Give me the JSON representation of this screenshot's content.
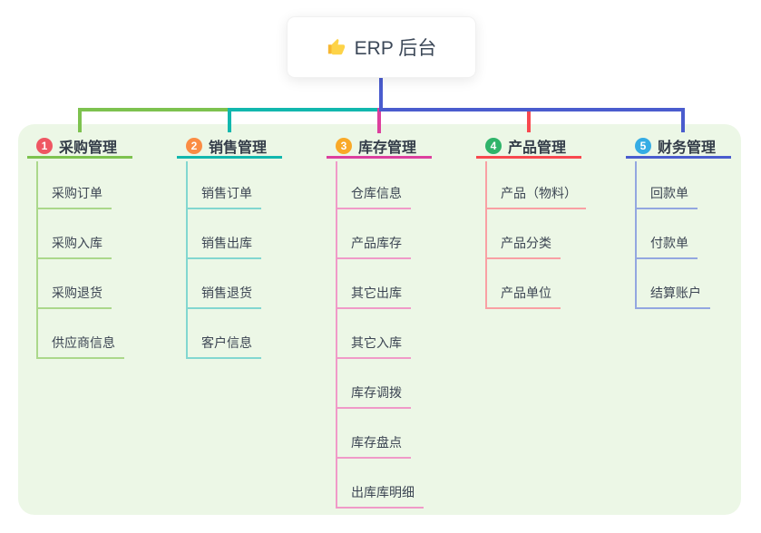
{
  "root": {
    "title": "ERP 后台",
    "icon": "thumbs-up-icon",
    "stem_color": "#4a5cce"
  },
  "panel": {
    "background": "#ecf7e6"
  },
  "branches": [
    {
      "number": "1",
      "title": "采购管理",
      "badge_color": "#ef5663",
      "line_color": "#7dc24f",
      "child_line_color": "#abd88b",
      "children": [
        "采购订单",
        "采购入库",
        "采购退货",
        "供应商信息"
      ]
    },
    {
      "number": "2",
      "title": "销售管理",
      "badge_color": "#fb8c44",
      "line_color": "#12b7ae",
      "child_line_color": "#82d7d0",
      "children": [
        "销售订单",
        "销售出库",
        "销售退货",
        "客户信息"
      ]
    },
    {
      "number": "3",
      "title": "库存管理",
      "badge_color": "#f9a928",
      "line_color": "#dc3f9e",
      "child_line_color": "#f09ac8",
      "children": [
        "仓库信息",
        "产品库存",
        "其它出库",
        "其它入库",
        "库存调拨",
        "库存盘点",
        "出库库明细"
      ]
    },
    {
      "number": "4",
      "title": "产品管理",
      "badge_color": "#2fb46a",
      "line_color": "#f8484f",
      "child_line_color": "#f9a0a4",
      "children": [
        "产品（物料）",
        "产品分类",
        "产品单位"
      ]
    },
    {
      "number": "5",
      "title": "财务管理",
      "badge_color": "#35ace4",
      "line_color": "#4a5cce",
      "child_line_color": "#93a7e0",
      "children": [
        "回款单",
        "付款单",
        "结算账户"
      ]
    }
  ]
}
